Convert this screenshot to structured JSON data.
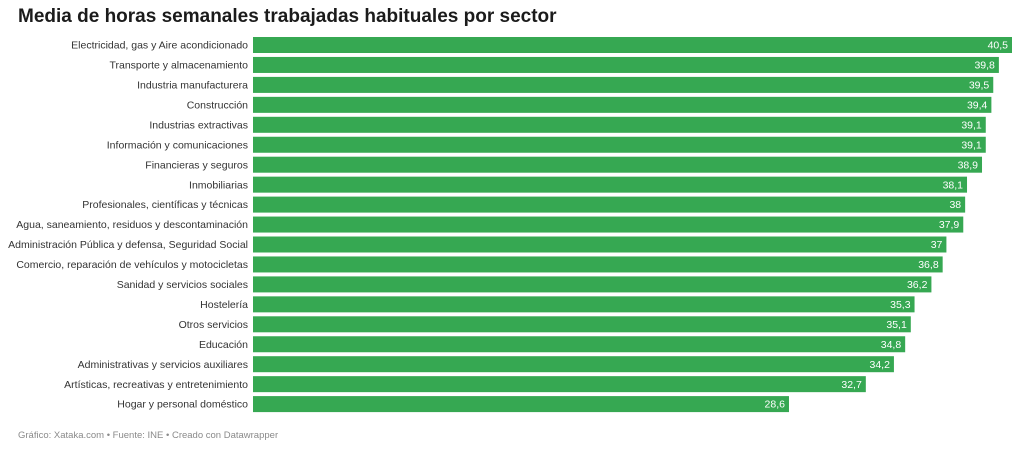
{
  "chart_data": {
    "type": "bar",
    "orientation": "horizontal",
    "title": "Media de horas semanales trabajadas habituales por sector",
    "categories": [
      "Electricidad, gas y Aire acondicionado",
      "Transporte y almacenamiento",
      "Industria manufacturera",
      "Construcción",
      "Industrias extractivas",
      "Información y comunicaciones",
      "Financieras y seguros",
      "Inmobiliarias",
      "Profesionales, científicas y técnicas",
      "Agua, saneamiento, residuos y descontaminación",
      "Administración Pública y defensa, Seguridad Social",
      "Comercio, reparación de vehículos y motocicletas",
      "Sanidad y servicios sociales",
      "Hostelería",
      "Otros servicios",
      "Educación",
      "Administrativas y servicios auxiliares",
      "Artísticas, recreativas y entretenimiento",
      "Hogar y personal doméstico"
    ],
    "values": [
      40.5,
      39.8,
      39.5,
      39.4,
      39.1,
      39.1,
      38.9,
      38.1,
      38,
      37.9,
      37,
      36.8,
      36.2,
      35.3,
      35.1,
      34.8,
      34.2,
      32.7,
      28.6
    ],
    "value_labels": [
      "40,5",
      "39,8",
      "39,5",
      "39,4",
      "39,1",
      "39,1",
      "38,9",
      "38,1",
      "38",
      "37,9",
      "37",
      "36,8",
      "36,2",
      "35,3",
      "35,1",
      "34,8",
      "34,2",
      "32,7",
      "28,6"
    ],
    "xlim": [
      0,
      40.5
    ],
    "grid": false,
    "bar_color": "#36a852"
  },
  "footer": "Gráfico: Xataka.com • Fuente: INE • Creado con Datawrapper"
}
